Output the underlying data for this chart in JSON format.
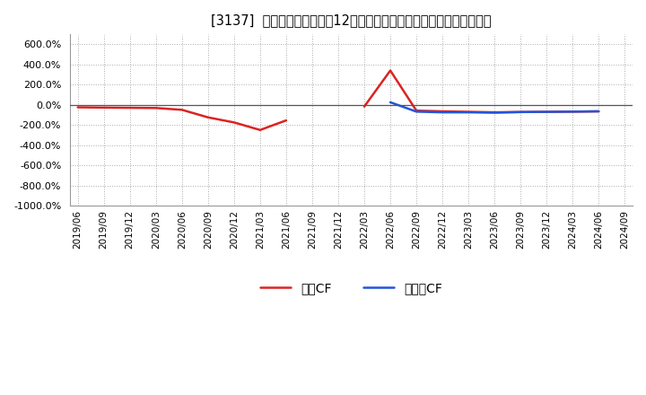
{
  "title": "[3137]  キャッシュフローの12か月移動合計の対前年同期増減率の推移",
  "ylim": [
    -1000,
    700
  ],
  "yticks": [
    -1000,
    -800,
    -600,
    -400,
    -200,
    0,
    200,
    400,
    600
  ],
  "background_color": "#ffffff",
  "grid_color": "#aaaaaa",
  "zero_line_color": "#555555",
  "legend_labels": [
    "営業CF",
    "フリーCF"
  ],
  "line_colors_op": "#dd2222",
  "line_colors_free": "#2255dd",
  "op_segments": [
    {
      "dates": [
        "2019/06",
        "2019/09",
        "2019/12",
        "2020/03",
        "2020/06",
        "2020/09",
        "2020/12",
        "2021/03",
        "2021/06"
      ],
      "values": [
        -25,
        -28,
        -30,
        -32,
        -50,
        -125,
        -175,
        -250,
        -155
      ]
    },
    {
      "dates": [
        "2022/03",
        "2022/06",
        "2022/09",
        "2022/12",
        "2023/03",
        "2023/06",
        "2023/09",
        "2023/12",
        "2024/03",
        "2024/06"
      ],
      "values": [
        -18,
        340,
        -58,
        -65,
        -70,
        -75,
        -72,
        -70,
        -68,
        -65
      ]
    }
  ],
  "free_segments": [
    {
      "dates": [
        "2022/06",
        "2022/09",
        "2022/12",
        "2023/03",
        "2023/06",
        "2023/09",
        "2023/12",
        "2024/03",
        "2024/06"
      ],
      "values": [
        25,
        -68,
        -75,
        -75,
        -78,
        -72,
        -70,
        -68,
        -65
      ]
    }
  ],
  "xticklabels": [
    "2019/06",
    "2019/09",
    "2019/12",
    "2020/03",
    "2020/06",
    "2020/09",
    "2020/12",
    "2021/03",
    "2021/06",
    "2021/09",
    "2021/12",
    "2022/03",
    "2022/06",
    "2022/09",
    "2022/12",
    "2023/03",
    "2023/06",
    "2023/09",
    "2023/12",
    "2024/03",
    "2024/06",
    "2024/09"
  ]
}
